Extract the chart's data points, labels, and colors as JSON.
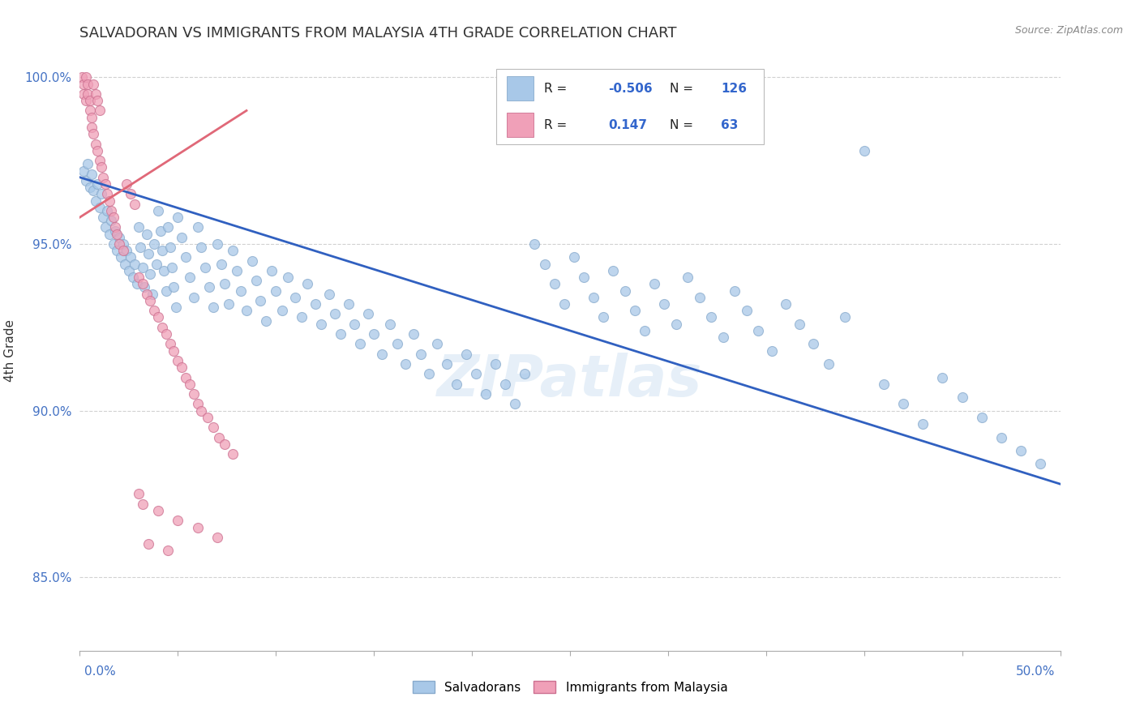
{
  "title": "SALVADORAN VS IMMIGRANTS FROM MALAYSIA 4TH GRADE CORRELATION CHART",
  "source": "Source: ZipAtlas.com",
  "ylabel": "4th Grade",
  "xlim": [
    0.0,
    0.5
  ],
  "ylim": [
    0.828,
    1.008
  ],
  "legend_r1": "-0.506",
  "legend_n1": "126",
  "legend_r2": "0.147",
  "legend_n2": "63",
  "blue_color": "#a8c8e8",
  "pink_color": "#f0a0b8",
  "line_blue": "#3060c0",
  "line_pink": "#e06878",
  "watermark": "ZIPatlas",
  "background": "#ffffff",
  "grid_color": "#cccccc",
  "title_color": "#333333",
  "blue_scatter": [
    [
      0.002,
      0.972
    ],
    [
      0.003,
      0.969
    ],
    [
      0.004,
      0.974
    ],
    [
      0.005,
      0.967
    ],
    [
      0.006,
      0.971
    ],
    [
      0.007,
      0.966
    ],
    [
      0.008,
      0.963
    ],
    [
      0.009,
      0.968
    ],
    [
      0.01,
      0.961
    ],
    [
      0.011,
      0.965
    ],
    [
      0.012,
      0.958
    ],
    [
      0.013,
      0.955
    ],
    [
      0.014,
      0.96
    ],
    [
      0.015,
      0.953
    ],
    [
      0.016,
      0.957
    ],
    [
      0.017,
      0.95
    ],
    [
      0.018,
      0.954
    ],
    [
      0.019,
      0.948
    ],
    [
      0.02,
      0.952
    ],
    [
      0.021,
      0.946
    ],
    [
      0.022,
      0.95
    ],
    [
      0.023,
      0.944
    ],
    [
      0.024,
      0.948
    ],
    [
      0.025,
      0.942
    ],
    [
      0.026,
      0.946
    ],
    [
      0.027,
      0.94
    ],
    [
      0.028,
      0.944
    ],
    [
      0.029,
      0.938
    ],
    [
      0.03,
      0.955
    ],
    [
      0.031,
      0.949
    ],
    [
      0.032,
      0.943
    ],
    [
      0.033,
      0.937
    ],
    [
      0.034,
      0.953
    ],
    [
      0.035,
      0.947
    ],
    [
      0.036,
      0.941
    ],
    [
      0.037,
      0.935
    ],
    [
      0.038,
      0.95
    ],
    [
      0.039,
      0.944
    ],
    [
      0.04,
      0.96
    ],
    [
      0.041,
      0.954
    ],
    [
      0.042,
      0.948
    ],
    [
      0.043,
      0.942
    ],
    [
      0.044,
      0.936
    ],
    [
      0.045,
      0.955
    ],
    [
      0.046,
      0.949
    ],
    [
      0.047,
      0.943
    ],
    [
      0.048,
      0.937
    ],
    [
      0.049,
      0.931
    ],
    [
      0.05,
      0.958
    ],
    [
      0.052,
      0.952
    ],
    [
      0.054,
      0.946
    ],
    [
      0.056,
      0.94
    ],
    [
      0.058,
      0.934
    ],
    [
      0.06,
      0.955
    ],
    [
      0.062,
      0.949
    ],
    [
      0.064,
      0.943
    ],
    [
      0.066,
      0.937
    ],
    [
      0.068,
      0.931
    ],
    [
      0.07,
      0.95
    ],
    [
      0.072,
      0.944
    ],
    [
      0.074,
      0.938
    ],
    [
      0.076,
      0.932
    ],
    [
      0.078,
      0.948
    ],
    [
      0.08,
      0.942
    ],
    [
      0.082,
      0.936
    ],
    [
      0.085,
      0.93
    ],
    [
      0.088,
      0.945
    ],
    [
      0.09,
      0.939
    ],
    [
      0.092,
      0.933
    ],
    [
      0.095,
      0.927
    ],
    [
      0.098,
      0.942
    ],
    [
      0.1,
      0.936
    ],
    [
      0.103,
      0.93
    ],
    [
      0.106,
      0.94
    ],
    [
      0.11,
      0.934
    ],
    [
      0.113,
      0.928
    ],
    [
      0.116,
      0.938
    ],
    [
      0.12,
      0.932
    ],
    [
      0.123,
      0.926
    ],
    [
      0.127,
      0.935
    ],
    [
      0.13,
      0.929
    ],
    [
      0.133,
      0.923
    ],
    [
      0.137,
      0.932
    ],
    [
      0.14,
      0.926
    ],
    [
      0.143,
      0.92
    ],
    [
      0.147,
      0.929
    ],
    [
      0.15,
      0.923
    ],
    [
      0.154,
      0.917
    ],
    [
      0.158,
      0.926
    ],
    [
      0.162,
      0.92
    ],
    [
      0.166,
      0.914
    ],
    [
      0.17,
      0.923
    ],
    [
      0.174,
      0.917
    ],
    [
      0.178,
      0.911
    ],
    [
      0.182,
      0.92
    ],
    [
      0.187,
      0.914
    ],
    [
      0.192,
      0.908
    ],
    [
      0.197,
      0.917
    ],
    [
      0.202,
      0.911
    ],
    [
      0.207,
      0.905
    ],
    [
      0.212,
      0.914
    ],
    [
      0.217,
      0.908
    ],
    [
      0.222,
      0.902
    ],
    [
      0.227,
      0.911
    ],
    [
      0.232,
      0.95
    ],
    [
      0.237,
      0.944
    ],
    [
      0.242,
      0.938
    ],
    [
      0.247,
      0.932
    ],
    [
      0.252,
      0.946
    ],
    [
      0.257,
      0.94
    ],
    [
      0.262,
      0.934
    ],
    [
      0.267,
      0.928
    ],
    [
      0.272,
      0.942
    ],
    [
      0.278,
      0.936
    ],
    [
      0.283,
      0.93
    ],
    [
      0.288,
      0.924
    ],
    [
      0.293,
      0.938
    ],
    [
      0.298,
      0.932
    ],
    [
      0.304,
      0.926
    ],
    [
      0.31,
      0.94
    ],
    [
      0.316,
      0.934
    ],
    [
      0.322,
      0.928
    ],
    [
      0.328,
      0.922
    ],
    [
      0.334,
      0.936
    ],
    [
      0.34,
      0.93
    ],
    [
      0.346,
      0.924
    ],
    [
      0.353,
      0.918
    ],
    [
      0.36,
      0.932
    ],
    [
      0.367,
      0.926
    ],
    [
      0.374,
      0.92
    ],
    [
      0.382,
      0.914
    ],
    [
      0.39,
      0.928
    ],
    [
      0.4,
      0.978
    ],
    [
      0.41,
      0.908
    ],
    [
      0.42,
      0.902
    ],
    [
      0.43,
      0.896
    ],
    [
      0.44,
      0.91
    ],
    [
      0.45,
      0.904
    ],
    [
      0.46,
      0.898
    ],
    [
      0.47,
      0.892
    ],
    [
      0.48,
      0.888
    ],
    [
      0.49,
      0.884
    ]
  ],
  "pink_scatter": [
    [
      0.001,
      1.0
    ],
    [
      0.002,
      0.998
    ],
    [
      0.002,
      0.995
    ],
    [
      0.003,
      0.993
    ],
    [
      0.003,
      1.0
    ],
    [
      0.004,
      0.998
    ],
    [
      0.004,
      0.995
    ],
    [
      0.005,
      0.993
    ],
    [
      0.005,
      0.99
    ],
    [
      0.006,
      0.988
    ],
    [
      0.006,
      0.985
    ],
    [
      0.007,
      0.983
    ],
    [
      0.007,
      0.998
    ],
    [
      0.008,
      0.995
    ],
    [
      0.008,
      0.98
    ],
    [
      0.009,
      0.978
    ],
    [
      0.009,
      0.993
    ],
    [
      0.01,
      0.99
    ],
    [
      0.01,
      0.975
    ],
    [
      0.011,
      0.973
    ],
    [
      0.012,
      0.97
    ],
    [
      0.013,
      0.968
    ],
    [
      0.014,
      0.965
    ],
    [
      0.015,
      0.963
    ],
    [
      0.016,
      0.96
    ],
    [
      0.017,
      0.958
    ],
    [
      0.018,
      0.955
    ],
    [
      0.019,
      0.953
    ],
    [
      0.02,
      0.95
    ],
    [
      0.022,
      0.948
    ],
    [
      0.024,
      0.968
    ],
    [
      0.026,
      0.965
    ],
    [
      0.028,
      0.962
    ],
    [
      0.03,
      0.94
    ],
    [
      0.032,
      0.938
    ],
    [
      0.034,
      0.935
    ],
    [
      0.036,
      0.933
    ],
    [
      0.038,
      0.93
    ],
    [
      0.04,
      0.928
    ],
    [
      0.042,
      0.925
    ],
    [
      0.044,
      0.923
    ],
    [
      0.046,
      0.92
    ],
    [
      0.048,
      0.918
    ],
    [
      0.05,
      0.915
    ],
    [
      0.052,
      0.913
    ],
    [
      0.054,
      0.91
    ],
    [
      0.056,
      0.908
    ],
    [
      0.058,
      0.905
    ],
    [
      0.06,
      0.902
    ],
    [
      0.062,
      0.9
    ],
    [
      0.065,
      0.898
    ],
    [
      0.068,
      0.895
    ],
    [
      0.071,
      0.892
    ],
    [
      0.074,
      0.89
    ],
    [
      0.078,
      0.887
    ],
    [
      0.03,
      0.875
    ],
    [
      0.032,
      0.872
    ],
    [
      0.04,
      0.87
    ],
    [
      0.05,
      0.867
    ],
    [
      0.06,
      0.865
    ],
    [
      0.07,
      0.862
    ],
    [
      0.035,
      0.86
    ],
    [
      0.045,
      0.858
    ]
  ],
  "blue_trendline_x": [
    0.0,
    0.5
  ],
  "blue_trendline_y": [
    0.97,
    0.878
  ],
  "pink_trendline_x": [
    0.0,
    0.085
  ],
  "pink_trendline_y": [
    0.958,
    0.99
  ]
}
